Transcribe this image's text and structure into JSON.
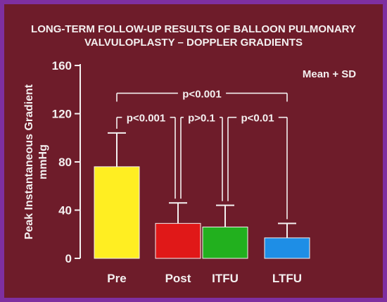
{
  "chart_data": {
    "type": "bar",
    "title": "LONG-TERM FOLLOW-UP RESULTS OF BALLOON PULMONARY",
    "subtitle": "VALVULOPLASTY – DOPPLER GRADIENTS",
    "ylabel": "Peak Instantaneous Gradient",
    "ylabel_unit": "mmHg",
    "legend_note": "Mean + SD",
    "categories": [
      "Pre",
      "Post",
      "ITFU",
      "LTFU"
    ],
    "values": [
      76,
      29,
      26,
      17
    ],
    "errors": [
      28,
      17,
      18,
      12
    ],
    "colors": [
      "#ffee22",
      "#e01818",
      "#22b01e",
      "#1e8ee6"
    ],
    "ylim": [
      0,
      160
    ],
    "yticks": [
      "0",
      "40",
      "80",
      "120",
      "160"
    ],
    "grid": false,
    "annotations": [
      {
        "text": "p<0.001",
        "from": 0,
        "to": 3,
        "level": 137
      },
      {
        "text": "p<0.001",
        "from": 0,
        "to": 1,
        "level": 117
      },
      {
        "text": "p>0.1",
        "from": 1,
        "to": 2,
        "level": 117
      },
      {
        "text": "p<0.01",
        "from": 2,
        "to": 3,
        "level": 117
      }
    ]
  }
}
